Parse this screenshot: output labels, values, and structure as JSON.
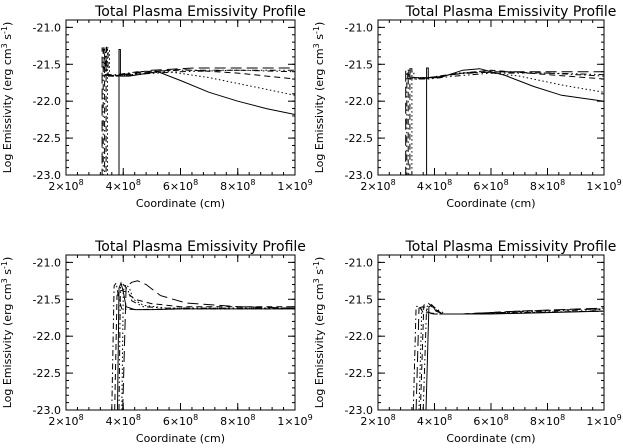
{
  "chart_data": [
    {
      "type": "line",
      "title": "Total Plasma Emissivity Profile",
      "xlabel": "Coordinate (cm)",
      "ylabel": "Log Emissivity (erg cm^3 s^-1)",
      "xlim": [
        200000000,
        1000000000
      ],
      "ylim": [
        -23.0,
        -20.9
      ],
      "xticks": [
        {
          "value": 200000000,
          "mantissa": "2",
          "exp": "8"
        },
        {
          "value": 400000000,
          "mantissa": "4",
          "exp": "8"
        },
        {
          "value": 600000000,
          "mantissa": "6",
          "exp": "8"
        },
        {
          "value": 800000000,
          "mantissa": "8",
          "exp": "8"
        },
        {
          "value": 1000000000,
          "mantissa": "1",
          "exp": "9"
        }
      ],
      "yticks": [
        -21.0,
        -21.5,
        -22.0,
        -22.5,
        -23.0
      ],
      "series": [
        {
          "dash": "solid",
          "x": [
            310000000,
            350000000,
            375000000,
            385000000,
            385000000,
            390000000,
            390000000,
            420000000,
            520000000,
            600000000,
            700000000,
            800000000,
            900000000,
            1000000000
          ],
          "y": [
            -23.0,
            -23.0,
            -23.0,
            -23.0,
            -21.3,
            -21.3,
            -21.66,
            -21.66,
            -21.6,
            -21.72,
            -21.88,
            -22.0,
            -22.1,
            -22.18
          ]
        },
        {
          "dash": "dot",
          "x": [
            318000000,
            345000000,
            345000000,
            352000000,
            352000000,
            380000000,
            480000000,
            560000000,
            700000000,
            850000000,
            1000000000
          ],
          "y": [
            -23.0,
            -23.0,
            -21.3,
            -21.3,
            -21.66,
            -21.66,
            -21.62,
            -21.6,
            -21.68,
            -21.8,
            -21.92
          ]
        },
        {
          "dash": "dash",
          "x": [
            316000000,
            340000000,
            340000000,
            347000000,
            347000000,
            380000000,
            500000000,
            600000000,
            800000000,
            1000000000
          ],
          "y": [
            -23.0,
            -23.0,
            -21.28,
            -21.28,
            -21.65,
            -21.65,
            -21.6,
            -21.57,
            -21.62,
            -21.7
          ]
        },
        {
          "dash": "dashdot",
          "x": [
            314000000,
            335000000,
            335000000,
            342000000,
            342000000,
            380000000,
            450000000,
            600000000,
            800000000,
            1000000000
          ],
          "y": [
            -23.0,
            -23.0,
            -21.27,
            -21.27,
            -21.64,
            -21.64,
            -21.6,
            -21.58,
            -21.58,
            -21.6
          ]
        },
        {
          "dash": "dashdotdot",
          "x": [
            312000000,
            330000000,
            330000000,
            338000000,
            338000000,
            380000000,
            470000000,
            600000000,
            800000000,
            1000000000
          ],
          "y": [
            -23.0,
            -23.0,
            -21.3,
            -21.3,
            -21.66,
            -21.66,
            -21.63,
            -21.6,
            -21.58,
            -21.58
          ]
        },
        {
          "dash": "longdash",
          "x": [
            310000000,
            326000000,
            326000000,
            333000000,
            333000000,
            380000000,
            500000000,
            650000000,
            800000000,
            1000000000
          ],
          "y": [
            -23.0,
            -23.0,
            -21.28,
            -21.28,
            -21.65,
            -21.65,
            -21.58,
            -21.55,
            -21.55,
            -21.55
          ]
        }
      ]
    },
    {
      "type": "line",
      "title": "Total Plasma Emissivity Profile",
      "xlabel": "Coordinate (cm)",
      "ylabel": "Log Emissivity (erg cm^3 s^-1)",
      "xlim": [
        200000000,
        1000000000
      ],
      "ylim": [
        -23.0,
        -20.9
      ],
      "xticks": [
        {
          "value": 200000000,
          "mantissa": "2",
          "exp": "8"
        },
        {
          "value": 400000000,
          "mantissa": "4",
          "exp": "8"
        },
        {
          "value": 600000000,
          "mantissa": "6",
          "exp": "8"
        },
        {
          "value": 800000000,
          "mantissa": "8",
          "exp": "8"
        },
        {
          "value": 1000000000,
          "mantissa": "1",
          "exp": "9"
        }
      ],
      "yticks": [
        -21.0,
        -21.5,
        -22.0,
        -22.5,
        -23.0
      ],
      "series": [
        {
          "dash": "solid",
          "x": [
            350000000,
            372000000,
            372000000,
            378000000,
            378000000,
            420000000,
            500000000,
            560000000,
            650000000,
            750000000,
            850000000,
            1000000000
          ],
          "y": [
            -23.0,
            -23.0,
            -21.55,
            -21.55,
            -21.68,
            -21.68,
            -21.58,
            -21.56,
            -21.65,
            -21.8,
            -21.92,
            -22.0
          ]
        },
        {
          "dash": "dot",
          "x": [
            300000000,
            320000000,
            320000000,
            327000000,
            327000000,
            380000000,
            480000000,
            560000000,
            700000000,
            850000000,
            1000000000
          ],
          "y": [
            -23.0,
            -23.0,
            -21.6,
            -21.6,
            -21.7,
            -21.7,
            -21.62,
            -21.6,
            -21.66,
            -21.78,
            -21.88
          ]
        },
        {
          "dash": "dash",
          "x": [
            296000000,
            313000000,
            313000000,
            320000000,
            320000000,
            380000000,
            500000000,
            600000000,
            800000000,
            1000000000
          ],
          "y": [
            -23.0,
            -23.0,
            -21.56,
            -21.56,
            -21.68,
            -21.68,
            -21.62,
            -21.58,
            -21.64,
            -21.7
          ]
        },
        {
          "dash": "dashdot",
          "x": [
            293000000,
            307000000,
            307000000,
            314000000,
            314000000,
            380000000,
            450000000,
            600000000,
            800000000,
            1000000000
          ],
          "y": [
            -23.0,
            -23.0,
            -21.58,
            -21.58,
            -21.68,
            -21.68,
            -21.64,
            -21.6,
            -21.62,
            -21.66
          ]
        },
        {
          "dash": "dashdotdot",
          "x": [
            290000000,
            302000000,
            302000000,
            309000000,
            309000000,
            380000000,
            470000000,
            600000000,
            800000000,
            1000000000
          ],
          "y": [
            -23.0,
            -23.0,
            -21.6,
            -21.6,
            -21.7,
            -21.7,
            -21.66,
            -21.62,
            -21.62,
            -21.64
          ]
        },
        {
          "dash": "longdash",
          "x": [
            288000000,
            298000000,
            298000000,
            305000000,
            305000000,
            380000000,
            500000000,
            650000000,
            800000000,
            1000000000
          ],
          "y": [
            -23.0,
            -23.0,
            -21.58,
            -21.58,
            -21.69,
            -21.69,
            -21.62,
            -21.6,
            -21.6,
            -21.6
          ]
        }
      ]
    },
    {
      "type": "line",
      "title": "Total Plasma Emissivity Profile",
      "xlabel": "Coordinate (cm)",
      "ylabel": "Log Emissivity (erg cm^3 s^-1)",
      "xlim": [
        200000000,
        1000000000
      ],
      "ylim": [
        -23.0,
        -20.9
      ],
      "xticks": [
        {
          "value": 200000000,
          "mantissa": "2",
          "exp": "8"
        },
        {
          "value": 400000000,
          "mantissa": "4",
          "exp": "8"
        },
        {
          "value": 600000000,
          "mantissa": "6",
          "exp": "8"
        },
        {
          "value": 800000000,
          "mantissa": "8",
          "exp": "8"
        },
        {
          "value": 1000000000,
          "mantissa": "1",
          "exp": "9"
        }
      ],
      "yticks": [
        -21.0,
        -21.5,
        -22.0,
        -22.5,
        -23.0
      ],
      "series": [
        {
          "dash": "solid",
          "x": [
            380000000,
            385000000,
            392000000,
            400000000,
            410000000,
            440000000,
            500000000,
            600000000,
            800000000,
            1000000000
          ],
          "y": [
            -23.0,
            -21.35,
            -21.28,
            -21.4,
            -21.6,
            -21.64,
            -21.64,
            -21.63,
            -21.63,
            -21.63
          ]
        },
        {
          "dash": "dot",
          "x": [
            395000000,
            400000000,
            410000000,
            422000000,
            435000000,
            470000000,
            550000000,
            700000000,
            1000000000
          ],
          "y": [
            -23.0,
            -21.38,
            -21.3,
            -21.35,
            -21.5,
            -21.58,
            -21.62,
            -21.62,
            -21.62
          ]
        },
        {
          "dash": "dash",
          "x": [
            370000000,
            378000000,
            392000000,
            410000000,
            440000000,
            500000000,
            600000000,
            800000000,
            1000000000
          ],
          "y": [
            -23.0,
            -21.45,
            -21.38,
            -21.4,
            -21.5,
            -21.56,
            -21.6,
            -21.6,
            -21.6
          ]
        },
        {
          "dash": "dashdot",
          "x": [
            360000000,
            368000000,
            375000000,
            385000000,
            395000000,
            450000000,
            600000000,
            1000000000
          ],
          "y": [
            -23.0,
            -21.32,
            -21.28,
            -21.5,
            -21.63,
            -21.64,
            -21.63,
            -21.63
          ]
        },
        {
          "dash": "dashdotdot",
          "x": [
            385000000,
            390000000,
            400000000,
            415000000,
            430000000,
            470000000,
            550000000,
            700000000,
            1000000000
          ],
          "y": [
            -23.0,
            -21.34,
            -21.3,
            -21.36,
            -21.52,
            -21.6,
            -21.62,
            -21.62,
            -21.62
          ]
        },
        {
          "dash": "longdash",
          "x": [
            398000000,
            410000000,
            430000000,
            450000000,
            480000000,
            530000000,
            620000000,
            800000000,
            1000000000
          ],
          "y": [
            -23.0,
            -21.33,
            -21.27,
            -21.25,
            -21.3,
            -21.45,
            -21.55,
            -21.6,
            -21.62
          ]
        }
      ]
    },
    {
      "type": "line",
      "title": "Total Plasma Emissivity Profile",
      "xlabel": "Coordinate (cm)",
      "ylabel": "Log Emissivity (erg cm^3 s^-1)",
      "xlim": [
        200000000,
        1000000000
      ],
      "ylim": [
        -23.0,
        -20.9
      ],
      "xticks": [
        {
          "value": 200000000,
          "mantissa": "2",
          "exp": "8"
        },
        {
          "value": 400000000,
          "mantissa": "4",
          "exp": "8"
        },
        {
          "value": 600000000,
          "mantissa": "6",
          "exp": "8"
        },
        {
          "value": 800000000,
          "mantissa": "8",
          "exp": "8"
        },
        {
          "value": 1000000000,
          "mantissa": "1",
          "exp": "9"
        }
      ],
      "yticks": [
        -21.0,
        -21.5,
        -22.0,
        -22.5,
        -23.0
      ],
      "series": [
        {
          "dash": "solid",
          "x": [
            370000000,
            380000000,
            392000000,
            405000000,
            430000000,
            500000000,
            600000000,
            800000000,
            1000000000
          ],
          "y": [
            -23.0,
            -21.6,
            -21.58,
            -21.66,
            -21.7,
            -21.7,
            -21.7,
            -21.68,
            -21.66
          ]
        },
        {
          "dash": "dot",
          "x": [
            345000000,
            355000000,
            368000000,
            382000000,
            410000000,
            500000000,
            700000000,
            1000000000
          ],
          "y": [
            -23.0,
            -21.62,
            -21.6,
            -21.68,
            -21.7,
            -21.7,
            -21.68,
            -21.66
          ]
        },
        {
          "dash": "dash",
          "x": [
            350000000,
            362000000,
            378000000,
            395000000,
            430000000,
            500000000,
            700000000,
            1000000000
          ],
          "y": [
            -23.0,
            -21.58,
            -21.55,
            -21.62,
            -21.7,
            -21.7,
            -21.66,
            -21.63
          ]
        },
        {
          "dash": "dashdot",
          "x": [
            325000000,
            335000000,
            345000000,
            360000000,
            400000000,
            500000000,
            700000000,
            1000000000
          ],
          "y": [
            -23.0,
            -21.6,
            -21.59,
            -21.68,
            -21.7,
            -21.7,
            -21.68,
            -21.66
          ]
        },
        {
          "dash": "dashdotdot",
          "x": [
            360000000,
            372000000,
            388000000,
            410000000,
            440000000,
            520000000,
            700000000,
            1000000000
          ],
          "y": [
            -23.0,
            -21.6,
            -21.57,
            -21.64,
            -21.7,
            -21.7,
            -21.67,
            -21.64
          ]
        },
        {
          "dash": "longdash",
          "x": [
            335000000,
            345000000,
            358000000,
            372000000,
            400000000,
            500000000,
            700000000,
            1000000000
          ],
          "y": [
            -23.0,
            -21.62,
            -21.6,
            -21.67,
            -21.7,
            -21.7,
            -21.66,
            -21.62
          ]
        }
      ]
    }
  ]
}
